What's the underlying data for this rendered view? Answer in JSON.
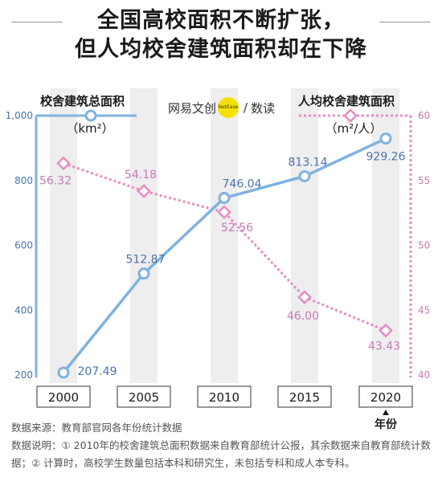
{
  "title": {
    "line1": "全国高校面积不断扩张，",
    "line2": "但人均校舍建筑面积却在下降"
  },
  "brand": {
    "part1": "网易文创",
    "dot": "NetEase",
    "slash": "/",
    "part2": "数读"
  },
  "legend": {
    "left_label": "校舍建筑总面积",
    "left_unit": "（km²）",
    "right_label": "人均校舍建筑面积",
    "right_unit": "（m²/人）"
  },
  "x_axis_label": "年份",
  "footer": {
    "source": "数据来源：教育部官网各年份统计数据",
    "note": "数据说明：① 2010年的校舍建筑总面积数据来自教育部统计公报，其余数据来自教育部统计数据；② 计算时，高校学生数量包括本科和研究生，未包括专科和成人本专科。"
  },
  "colors": {
    "blue": "#7fb2e0",
    "blue_text": "#4a74a8",
    "pink": "#e88cc4",
    "pink_text": "#c77ab3",
    "band": "#eeeeee"
  },
  "chart_data": {
    "type": "line",
    "x": [
      "2000",
      "2005",
      "2010",
      "2015",
      "2020"
    ],
    "series": [
      {
        "name": "校舍建筑总面积",
        "unit": "km²",
        "axis": "left",
        "values": [
          207.49,
          512.87,
          746.04,
          813.14,
          929.26
        ],
        "labels": [
          "207.49",
          "512.87",
          "746.04",
          "813.14",
          "929.26"
        ]
      },
      {
        "name": "人均校舍建筑面积",
        "unit": "m²/人",
        "axis": "right",
        "values": [
          56.32,
          54.18,
          52.56,
          46.0,
          43.43
        ],
        "labels": [
          "56.32",
          "54.18",
          "52.56",
          "46.00",
          "43.43"
        ]
      }
    ],
    "left_axis": {
      "ylim": [
        200,
        1000
      ],
      "ticks": [
        "200",
        "400",
        "600",
        "800",
        "1,000"
      ]
    },
    "right_axis": {
      "ylim": [
        40,
        60
      ],
      "ticks": [
        "40",
        "45",
        "50",
        "55",
        "60"
      ]
    },
    "grid": false
  }
}
